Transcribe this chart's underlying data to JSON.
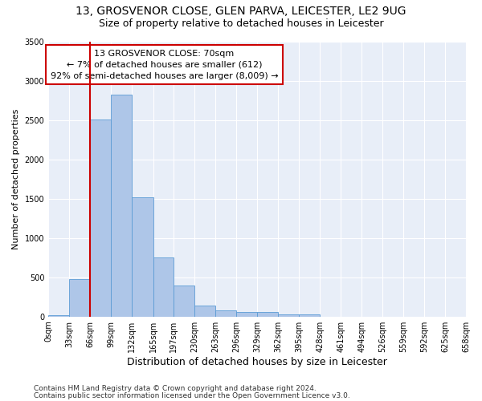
{
  "title1": "13, GROSVENOR CLOSE, GLEN PARVA, LEICESTER, LE2 9UG",
  "title2": "Size of property relative to detached houses in Leicester",
  "xlabel": "Distribution of detached houses by size in Leicester",
  "ylabel": "Number of detached properties",
  "footnote1": "Contains HM Land Registry data © Crown copyright and database right 2024.",
  "footnote2": "Contains public sector information licensed under the Open Government Licence v3.0.",
  "annotation_line1": "13 GROSVENOR CLOSE: 70sqm",
  "annotation_line2": "← 7% of detached houses are smaller (612)",
  "annotation_line3": "92% of semi-detached houses are larger (8,009) →",
  "bins": [
    0,
    33,
    66,
    99,
    132,
    165,
    197,
    230,
    263,
    296,
    329,
    362,
    395,
    428,
    461,
    494,
    526,
    559,
    592,
    625,
    658
  ],
  "counts": [
    20,
    480,
    2510,
    2820,
    1520,
    750,
    390,
    140,
    80,
    55,
    55,
    30,
    30,
    0,
    0,
    0,
    0,
    0,
    0,
    0
  ],
  "bar_color": "#aec6e8",
  "bar_edge_color": "#5b9bd5",
  "vline_x": 66,
  "vline_color": "#cc0000",
  "annotation_box_color": "#cc0000",
  "background_color": "#e8eef8",
  "ylim": [
    0,
    3500
  ],
  "yticks": [
    0,
    500,
    1000,
    1500,
    2000,
    2500,
    3000,
    3500
  ],
  "title1_fontsize": 10,
  "title2_fontsize": 9,
  "xlabel_fontsize": 9,
  "ylabel_fontsize": 8,
  "tick_fontsize": 7,
  "annotation_fontsize": 8,
  "footnote_fontsize": 6.5
}
